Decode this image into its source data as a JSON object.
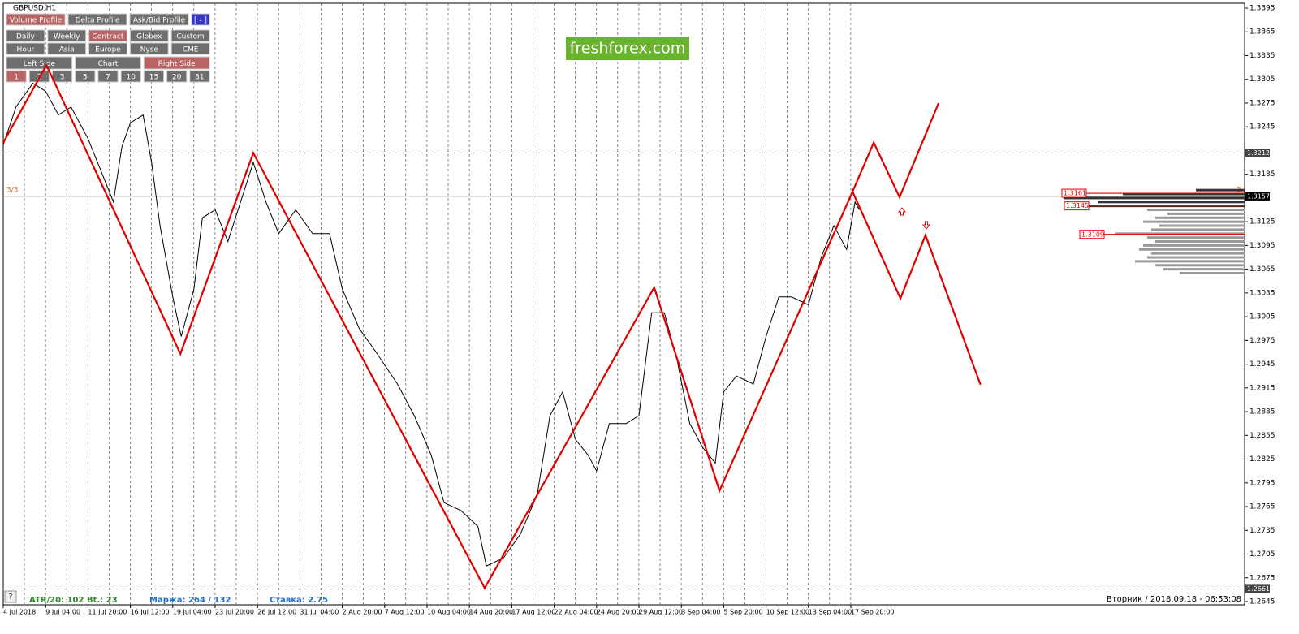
{
  "window": {
    "symbol": "GBPUSD,H1",
    "logo": "freshforex.com",
    "page_label": "3/3",
    "page_label_right": "3"
  },
  "toolbar": {
    "rows": [
      [
        {
          "label": "Volume Profile",
          "style": "active"
        },
        {
          "label": "Delta Profile",
          "style": "normal"
        },
        {
          "label": "Ask/Bid Profile",
          "style": "normal"
        },
        {
          "label": "[ - ]",
          "style": "accent"
        }
      ],
      [
        {
          "label": "Daily",
          "style": "normal"
        },
        {
          "label": "Weekly",
          "style": "normal"
        },
        {
          "label": "Contract",
          "style": "active"
        },
        {
          "label": "Globex",
          "style": "normal"
        },
        {
          "label": "Custom",
          "style": "normal"
        }
      ],
      [
        {
          "label": "Hour",
          "style": "normal"
        },
        {
          "label": "Asia",
          "style": "normal"
        },
        {
          "label": "Europe",
          "style": "normal"
        },
        {
          "label": "Nyse",
          "style": "normal"
        },
        {
          "label": "CME",
          "style": "normal"
        }
      ],
      [
        {
          "label": "Left Side",
          "style": "normal"
        },
        {
          "label": "Chart",
          "style": "normal"
        },
        {
          "label": "Right Side",
          "style": "active"
        }
      ],
      [
        {
          "label": "1",
          "style": "active"
        },
        {
          "label": "2",
          "style": "normal"
        },
        {
          "label": "3",
          "style": "normal"
        },
        {
          "label": "5",
          "style": "normal"
        },
        {
          "label": "7",
          "style": "normal"
        },
        {
          "label": "10",
          "style": "normal"
        },
        {
          "label": "15",
          "style": "normal"
        },
        {
          "label": "20",
          "style": "normal"
        },
        {
          "label": "31",
          "style": "normal"
        }
      ]
    ]
  },
  "chart": {
    "type": "line",
    "ylim": [
      1.2645,
      1.3395
    ],
    "yticks": [
      1.3395,
      1.3365,
      1.3335,
      1.3305,
      1.3275,
      1.3245,
      1.3185,
      1.3125,
      1.3095,
      1.3065,
      1.3035,
      1.3005,
      1.2975,
      1.2945,
      1.2915,
      1.2885,
      1.2855,
      1.2825,
      1.2795,
      1.2765,
      1.2735,
      1.2705,
      1.2675,
      1.2645
    ],
    "x_labels": [
      "4 Jul 2018",
      "9 Jul 04:00",
      "11 Jul 20:00",
      "16 Jul 12:00",
      "19 Jul 04:00",
      "23 Jul 20:00",
      "26 Jul 12:00",
      "31 Jul 04:00",
      "2 Aug 20:00",
      "7 Aug 12:00",
      "10 Aug 04:00",
      "14 Aug 20:00",
      "17 Aug 12:00",
      "22 Aug 04:00",
      "24 Aug 20:00",
      "29 Aug 12:00",
      "3 Sep 04:00",
      "5 Sep 20:00",
      "10 Sep 12:00",
      "13 Sep 04:00",
      "17 Sep 20:00"
    ],
    "levels": [
      {
        "value": 1.3212,
        "style": "dash-dot"
      },
      {
        "value": 1.3157,
        "style": "current"
      },
      {
        "value": 1.2661,
        "style": "dash-dot"
      }
    ],
    "price": {
      "x": [
        0,
        0.3,
        0.7,
        1.0,
        1.3,
        1.6,
        2.0,
        2.3,
        2.6,
        2.8,
        3.0,
        3.3,
        3.5,
        3.7,
        4.0,
        4.2,
        4.5,
        4.7,
        5.0,
        5.3,
        5.6,
        5.9,
        6.2,
        6.5,
        6.9,
        7.3,
        7.7,
        8.0,
        8.4,
        8.8,
        9.3,
        9.7,
        10.1,
        10.4,
        10.8,
        11.2,
        11.4,
        11.8,
        12.2,
        12.6,
        12.9,
        13.2,
        13.5,
        13.8,
        14.0,
        14.3,
        14.7,
        15.0,
        15.3,
        15.6,
        15.9,
        16.2,
        16.5,
        16.8,
        17.0,
        17.3,
        17.7,
        18.0,
        18.3,
        18.6,
        19.0,
        19.3,
        19.6,
        19.9,
        20.1,
        20.2
      ],
      "values": [
        1.3222,
        1.327,
        1.33,
        1.329,
        1.326,
        1.327,
        1.323,
        1.319,
        1.315,
        1.322,
        1.325,
        1.326,
        1.32,
        1.312,
        1.303,
        1.298,
        1.304,
        1.313,
        1.314,
        1.31,
        1.315,
        1.32,
        1.315,
        1.311,
        1.314,
        1.311,
        1.311,
        1.304,
        1.299,
        1.296,
        1.292,
        1.288,
        1.283,
        1.277,
        1.276,
        1.274,
        1.269,
        1.27,
        1.273,
        1.278,
        1.288,
        1.291,
        1.285,
        1.283,
        1.281,
        1.287,
        1.287,
        1.288,
        1.301,
        1.301,
        1.295,
        1.287,
        1.284,
        1.282,
        1.291,
        1.293,
        1.292,
        1.298,
        1.303,
        1.303,
        1.302,
        1.308,
        1.312,
        1.309,
        1.315,
        1.314
      ]
    },
    "zigzag": {
      "x": [
        0,
        1.02,
        4.18,
        5.9,
        11.36,
        15.36,
        16.9,
        20.04
      ],
      "values": [
        1.3225,
        1.3323,
        1.2958,
        1.3212,
        1.2662,
        1.3042,
        1.2785,
        1.3163
      ]
    },
    "forecast": [
      {
        "x": [
          20.04,
          20.54,
          21.15,
          22.07
        ],
        "values": [
          1.3163,
          1.3225,
          1.3156,
          1.3275
        ]
      },
      {
        "x": [
          20.04,
          21.17,
          21.76,
          23.06
        ],
        "values": [
          1.3163,
          1.3028,
          1.3108,
          1.2919
        ]
      }
    ],
    "profile": {
      "prices": [
        1.3165,
        1.316,
        1.3155,
        1.315,
        1.3145,
        1.314,
        1.3135,
        1.313,
        1.3125,
        1.312,
        1.3115,
        1.311,
        1.3105,
        1.31,
        1.3095,
        1.309,
        1.3085,
        1.308,
        1.3075,
        1.307,
        1.3065,
        1.306
      ],
      "volumes": [
        60,
        150,
        223,
        180,
        215,
        120,
        95,
        110,
        125,
        105,
        115,
        160,
        120,
        110,
        125,
        130,
        115,
        120,
        135,
        110,
        100,
        80
      ],
      "labels": [
        1.3161,
        1.3145,
        1.3109
      ]
    }
  },
  "status": {
    "help": "?",
    "atr": "ATR/20: 102",
    "bt": "Bt.: 23",
    "margin": "Маржа: 264 / 132",
    "rate": "Ставка: 2.75",
    "datetime": "Вторник / 2018.09.18 - 06:53:08"
  }
}
